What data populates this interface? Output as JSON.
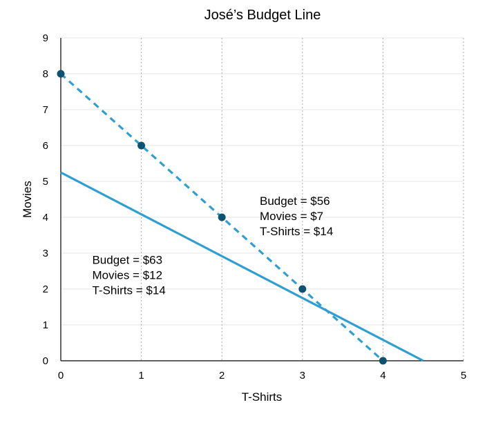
{
  "chart_data": {
    "type": "line",
    "title": "José’s Budget Line",
    "xlabel": "T-Shirts",
    "ylabel": "Movies",
    "xlim": [
      0,
      5
    ],
    "ylim": [
      0,
      9
    ],
    "x_ticks": [
      "0",
      "1",
      "2",
      "3",
      "4",
      "5"
    ],
    "y_ticks": [
      "0",
      "1",
      "2",
      "3",
      "4",
      "5",
      "6",
      "7",
      "8",
      "9"
    ],
    "grid": {
      "vertical": "dotted",
      "horizontal": "faint"
    },
    "colors": {
      "solid": "#2e9fd0",
      "dashed": "#2e9fd0",
      "points": "#0e5272"
    },
    "series": [
      {
        "name": "Budget = $63",
        "style": "solid",
        "x": [
          0,
          4.5
        ],
        "y": [
          5.25,
          0
        ]
      },
      {
        "name": "Budget = $56",
        "style": "dashed",
        "x": [
          0,
          1,
          2,
          3,
          4
        ],
        "y": [
          8,
          6,
          4,
          2,
          0
        ],
        "markers": true
      }
    ],
    "annotations": [
      {
        "id": "dashed-budget",
        "lines": [
          "Budget = $56",
          "Movies = $7",
          "T-Shirts = $14"
        ],
        "x": 2.47,
        "y": 4.35
      },
      {
        "id": "solid-budget",
        "lines": [
          "Budget = $63",
          "Movies = $12",
          "T-Shirts = $14"
        ],
        "x": 0.39,
        "y": 2.7
      }
    ]
  }
}
